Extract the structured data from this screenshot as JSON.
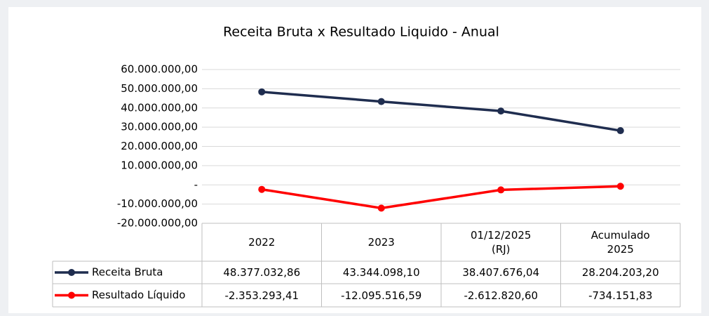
{
  "chart_data": {
    "type": "line",
    "title": "Receita Bruta x Resultado Liquido - Anual",
    "categories": [
      "2022",
      "2023",
      "01/12/2025\n(RJ)",
      "Acumulado\n2025"
    ],
    "series": [
      {
        "name": "Receita Bruta",
        "color": "#1f2d4f",
        "values": [
          48377032.86,
          43344098.1,
          38407676.04,
          28204203.2
        ],
        "value_labels": [
          "48.377.032,86",
          "43.344.098,10",
          "38.407.676,04",
          "28.204.203,20"
        ]
      },
      {
        "name": "Resultado Líquido",
        "color": "#ff0000",
        "values": [
          -2353293.41,
          -12095516.59,
          -2612820.6,
          -734151.83
        ],
        "value_labels": [
          "-2.353.293,41",
          "-12.095.516,59",
          "-2.612.820,60",
          "-734.151,83"
        ]
      }
    ],
    "ylim": [
      -20000000,
      60000000
    ],
    "yticks": [
      {
        "value": -20000000,
        "label": "-20.000.000,00"
      },
      {
        "value": -10000000,
        "label": "-10.000.000,00"
      },
      {
        "value": 0,
        "label": "-"
      },
      {
        "value": 10000000,
        "label": "10.000.000,00"
      },
      {
        "value": 20000000,
        "label": "20.000.000,00"
      },
      {
        "value": 30000000,
        "label": "30.000.000,00"
      },
      {
        "value": 40000000,
        "label": "40.000.000,00"
      },
      {
        "value": 50000000,
        "label": "50.000.000,00"
      },
      {
        "value": 60000000,
        "label": "60.000.000,00"
      }
    ],
    "grid": true
  }
}
